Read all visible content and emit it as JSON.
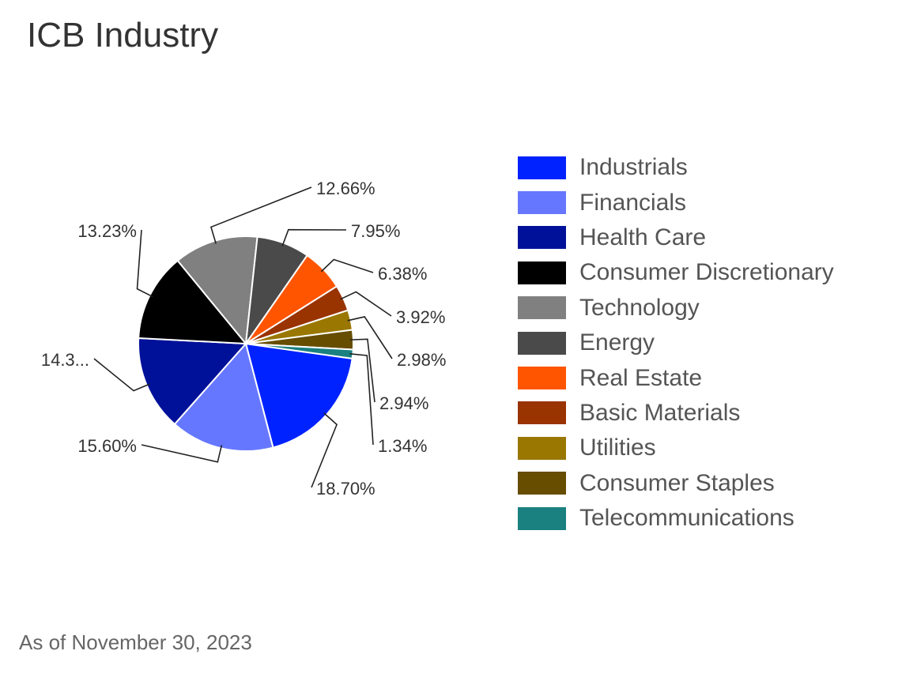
{
  "title": "ICB Industry",
  "as_of": "As of November 30, 2023",
  "chart_data": {
    "type": "pie",
    "title": "ICB Industry",
    "legend_position": "right",
    "slices": [
      {
        "name": "Industrials",
        "value": 18.7,
        "label": "18.70%",
        "color": "#0022ff"
      },
      {
        "name": "Financials",
        "value": 15.6,
        "label": "15.60%",
        "color": "#6677ff"
      },
      {
        "name": "Health Care",
        "value": 14.3,
        "label": "14.3...",
        "color": "#001199"
      },
      {
        "name": "Consumer Discretionary",
        "value": 13.23,
        "label": "13.23%",
        "color": "#000000"
      },
      {
        "name": "Technology",
        "value": 12.66,
        "label": "12.66%",
        "color": "#808080"
      },
      {
        "name": "Energy",
        "value": 7.95,
        "label": "7.95%",
        "color": "#4a4a4a"
      },
      {
        "name": "Real Estate",
        "value": 6.38,
        "label": "6.38%",
        "color": "#ff5500"
      },
      {
        "name": "Basic Materials",
        "value": 3.92,
        "label": "3.92%",
        "color": "#993300"
      },
      {
        "name": "Utilities",
        "value": 2.98,
        "label": "2.98%",
        "color": "#997700"
      },
      {
        "name": "Consumer Staples",
        "value": 2.94,
        "label": "2.94%",
        "color": "#664d00"
      },
      {
        "name": "Telecommunications",
        "value": 1.34,
        "label": "1.34%",
        "color": "#1a8080"
      }
    ]
  }
}
